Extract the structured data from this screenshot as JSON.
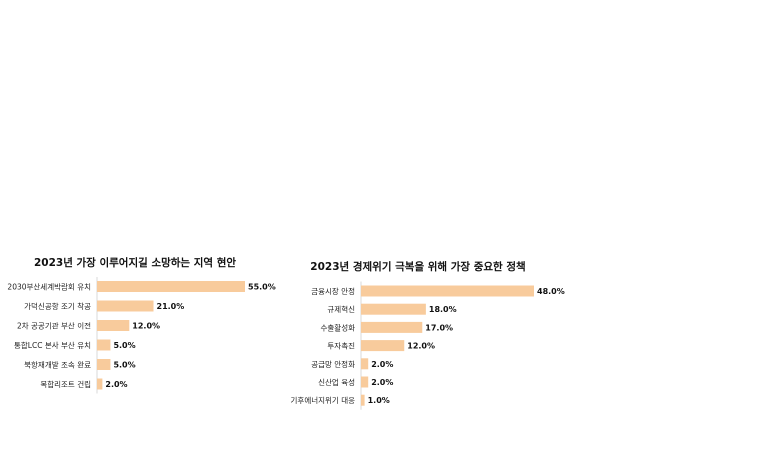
{
  "bar_color": "#F8CB9C",
  "chart_data": [
    {
      "type": "bar",
      "orientation": "horizontal",
      "title": "2023년 가장 이루어지길 소망하는 지역 현안",
      "xlabel": "",
      "ylabel": "",
      "grid": false,
      "legend": "none",
      "xlim": [
        0,
        55
      ],
      "categories": [
        "2030부산세계박람회 유치",
        "가덕신공항 조기 착공",
        "2차 공공기관 부산 이전",
        "통합LCC 본사 부산 유치",
        "북항재개발 조속 완료",
        "복합리조트 건립"
      ],
      "values": [
        55.0,
        21.0,
        12.0,
        5.0,
        5.0,
        2.0
      ],
      "value_labels": [
        "55.0%",
        "21.0%",
        "12.0%",
        "5.0%",
        "5.0%",
        "2.0%"
      ]
    },
    {
      "type": "bar",
      "orientation": "horizontal",
      "title": "2023년 경제위기 극복을 위해 가장 중요한 정책",
      "xlabel": "",
      "ylabel": "",
      "grid": false,
      "legend": "none",
      "xlim": [
        0,
        48
      ],
      "categories": [
        "금융시장 안정",
        "규제혁신",
        "수출활성화",
        "투자촉진",
        "공급망 안정화",
        "신산업 육성",
        "기후에너지위기 대응"
      ],
      "values": [
        48.0,
        18.0,
        17.0,
        12.0,
        2.0,
        2.0,
        1.0
      ],
      "value_labels": [
        "48.0%",
        "18.0%",
        "17.0%",
        "12.0%",
        "2.0%",
        "2.0%",
        "1.0%"
      ]
    }
  ]
}
